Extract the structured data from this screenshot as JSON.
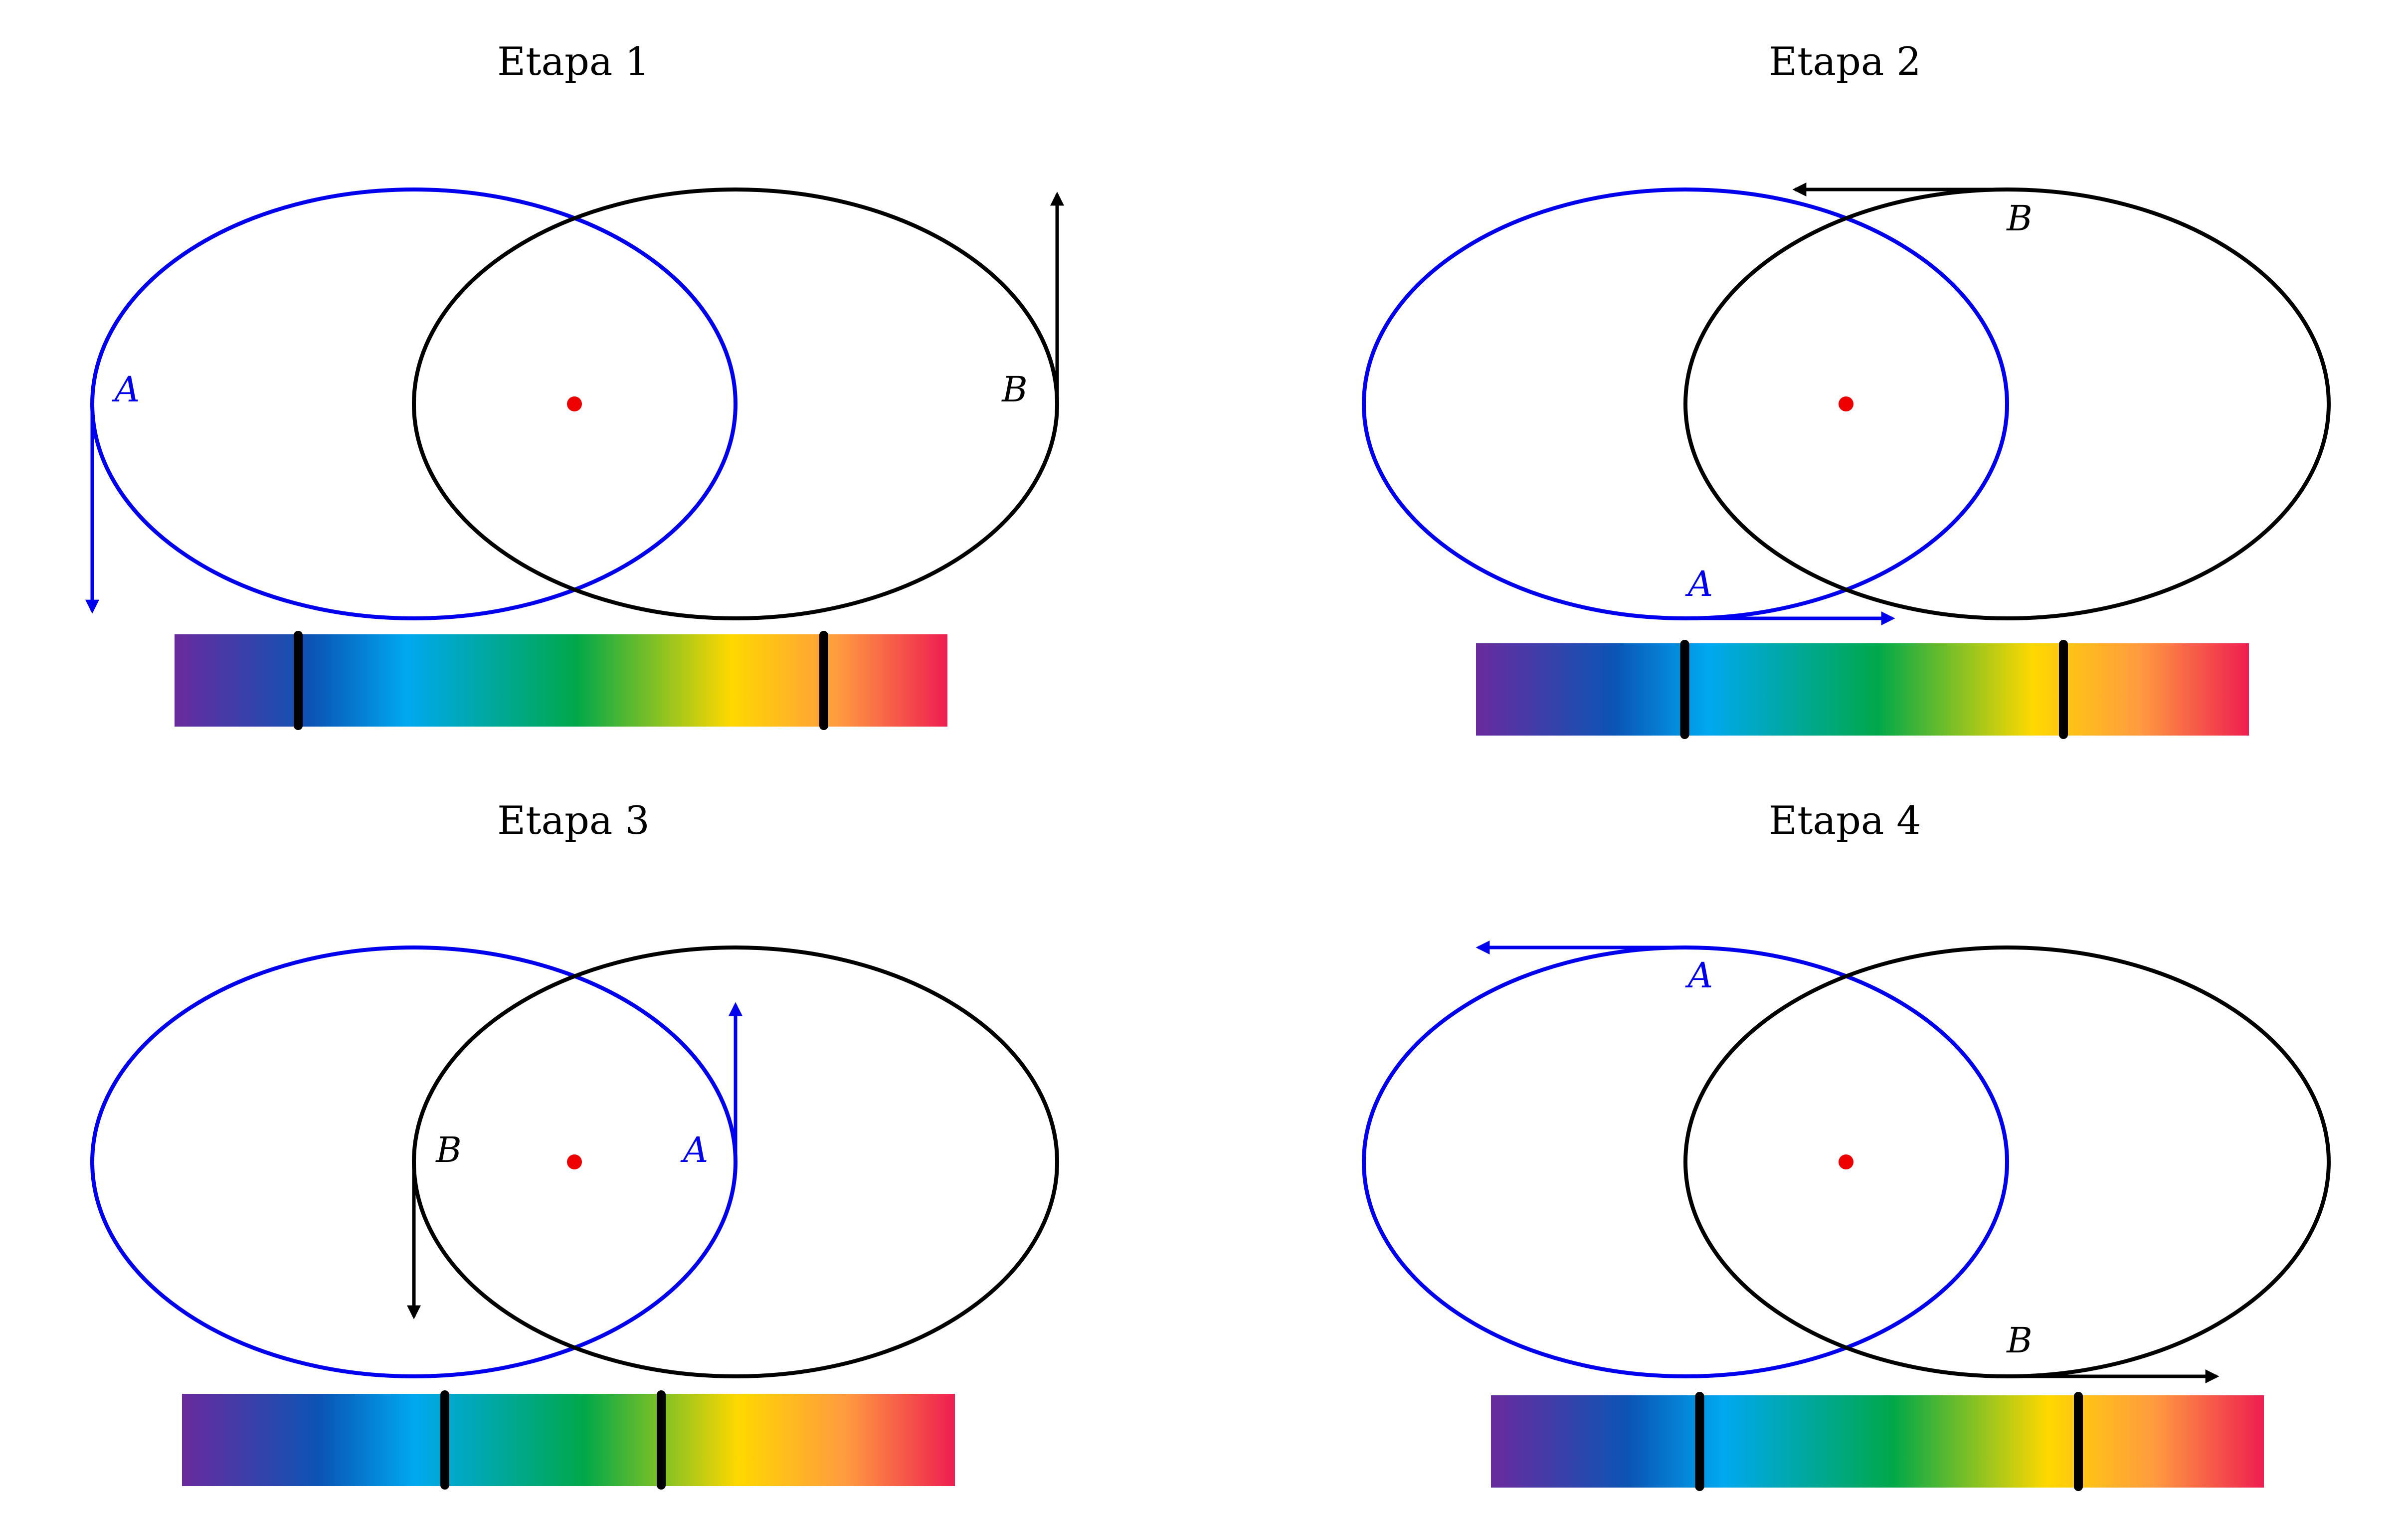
{
  "panels": [
    {
      "title": "Etapa 1",
      "point_a": {
        "label": "A",
        "arrow": "down"
      },
      "point_b": {
        "label": "B",
        "arrow": "up"
      },
      "spectrum_markers": [
        0.16,
        0.84
      ]
    },
    {
      "title": "Etapa 2",
      "point_a": {
        "label": "A",
        "arrow": "right"
      },
      "point_b": {
        "label": "B",
        "arrow": "left"
      },
      "spectrum_markers": [
        0.27,
        0.76
      ]
    },
    {
      "title": "Etapa 3",
      "point_a": {
        "label": "A",
        "arrow": "up"
      },
      "point_b": {
        "label": "B",
        "arrow": "down"
      },
      "spectrum_markers": [
        0.34,
        0.62
      ]
    },
    {
      "title": "Etapa 4",
      "point_a": {
        "label": "A",
        "arrow": "left"
      },
      "point_b": {
        "label": "B",
        "arrow": "right"
      },
      "spectrum_markers": [
        0.27,
        0.76
      ]
    }
  ],
  "colors": {
    "ellipse_a": "#0000ee",
    "ellipse_b": "#000000",
    "center_dot": "#ee0000",
    "markers": "#000000",
    "spectrum": [
      "#6a2a9e",
      "#0a55b5",
      "#00a8f0",
      "#00a84a",
      "#ffd800",
      "#ff9a40",
      "#ee1e50"
    ]
  }
}
